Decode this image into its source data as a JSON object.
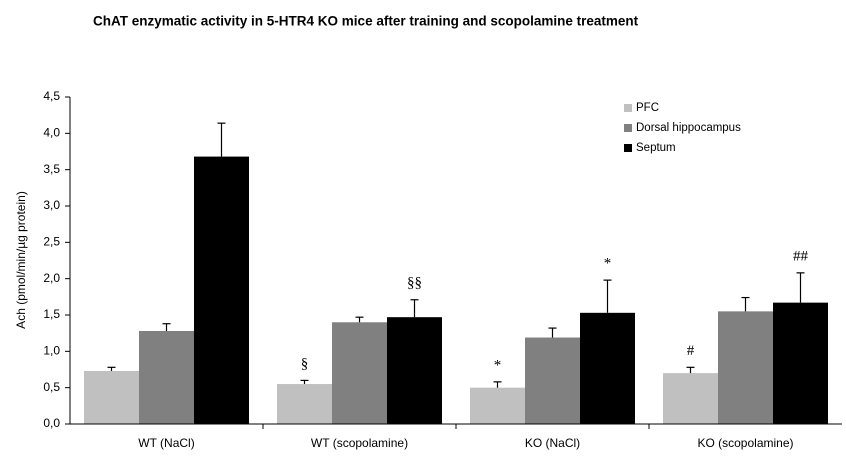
{
  "chart_data": {
    "type": "bar",
    "title": "ChAT enzymatic activity in 5-HTR4 KO mice after training and scopolamine treatment",
    "y_label": "Ach (pmol/min/µg protein)",
    "categories": [
      "WT (NaCl)",
      "WT (scopolamine)",
      "KO (NaCl)",
      "KO (scopolamine)"
    ],
    "series": [
      {
        "name": "PFC",
        "color": "#c0c0c0",
        "values": [
          0.73,
          0.55,
          0.5,
          0.7
        ],
        "errors": [
          0.05,
          0.05,
          0.08,
          0.08
        ]
      },
      {
        "name": "Dorsal hippocampus",
        "color": "#808080",
        "values": [
          1.28,
          1.4,
          1.19,
          1.55
        ],
        "errors": [
          0.1,
          0.07,
          0.13,
          0.19
        ]
      },
      {
        "name": "Septum",
        "color": "#000000",
        "values": [
          3.68,
          1.47,
          1.53,
          1.67
        ],
        "errors": [
          0.46,
          0.24,
          0.45,
          0.41
        ]
      }
    ],
    "annotations": [
      {
        "text": "§",
        "category": "WT (scopolamine)",
        "series": "PFC"
      },
      {
        "text": "§§",
        "category": "WT (scopolamine)",
        "series": "Septum"
      },
      {
        "text": "*",
        "category": "KO (NaCl)",
        "series": "PFC"
      },
      {
        "text": "*",
        "category": "KO (NaCl)",
        "series": "Septum"
      },
      {
        "text": "#",
        "category": "KO (scopolamine)",
        "series": "PFC"
      },
      {
        "text": "##",
        "category": "KO (scopolamine)",
        "series": "Septum"
      }
    ],
    "ylim": [
      0,
      4.5
    ],
    "yticks": [
      {
        "value": 0,
        "label": "0,0"
      },
      {
        "value": 0.5,
        "label": "0,5"
      },
      {
        "value": 1,
        "label": "1,0"
      },
      {
        "value": 1.5,
        "label": "1,5"
      },
      {
        "value": 2,
        "label": "2,0"
      },
      {
        "value": 2.5,
        "label": "2,5"
      },
      {
        "value": 3,
        "label": "3,0"
      },
      {
        "value": 3.5,
        "label": "3,5"
      },
      {
        "value": 4,
        "label": "4,0"
      },
      {
        "value": 4.5,
        "label": "4,5"
      }
    ],
    "legend": "upper right"
  }
}
